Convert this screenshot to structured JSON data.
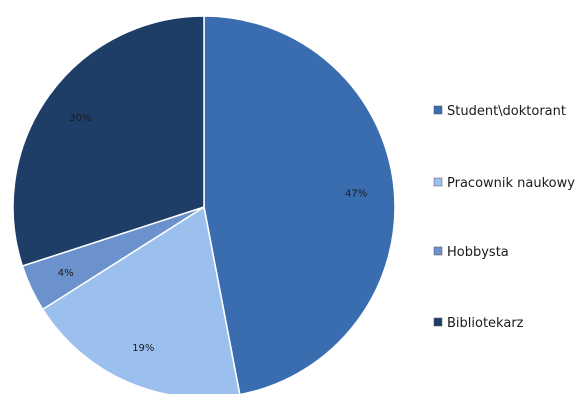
{
  "chart_data": {
    "type": "pie",
    "slices": [
      {
        "name": "Student\\doktorant",
        "value": 47,
        "label": "47%",
        "color": "#3a6db0"
      },
      {
        "name": "Pracownik naukowy",
        "value": 19,
        "label": "19%",
        "color": "#9cc0ee"
      },
      {
        "name": "Hobbysta",
        "value": 4,
        "label": "4%",
        "color": "#6b92cd"
      },
      {
        "name": "Bibliotekarz",
        "value": 30,
        "label": "30%",
        "color": "#1e3e68"
      }
    ],
    "legend_position": "right",
    "start_angle_deg": 0,
    "direction": "clockwise"
  }
}
